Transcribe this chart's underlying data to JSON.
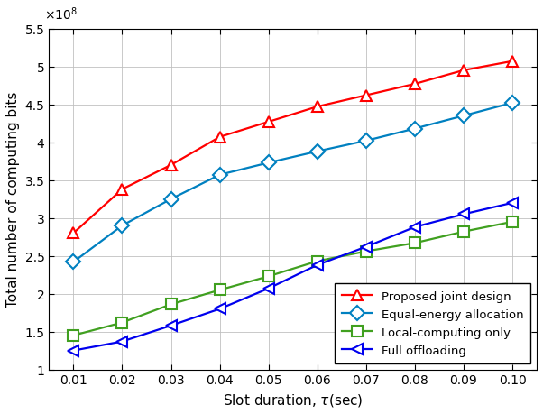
{
  "x": [
    0.01,
    0.02,
    0.03,
    0.04,
    0.05,
    0.06,
    0.07,
    0.08,
    0.09,
    0.1
  ],
  "proposed": [
    280000000.0,
    338000000.0,
    370000000.0,
    407000000.0,
    427000000.0,
    447000000.0,
    462000000.0,
    477000000.0,
    495000000.0,
    507000000.0
  ],
  "equal_energy": [
    242000000.0,
    290000000.0,
    325000000.0,
    357000000.0,
    373000000.0,
    388000000.0,
    402000000.0,
    418000000.0,
    435000000.0,
    452000000.0
  ],
  "local_computing": [
    145000000.0,
    162000000.0,
    186000000.0,
    205000000.0,
    223000000.0,
    243000000.0,
    256000000.0,
    267000000.0,
    282000000.0,
    295000000.0
  ],
  "full_offloading": [
    125000000.0,
    137000000.0,
    158000000.0,
    180000000.0,
    207000000.0,
    238000000.0,
    262000000.0,
    288000000.0,
    305000000.0,
    320000000.0
  ],
  "proposed_color": "#FF0000",
  "equal_energy_color": "#0080C0",
  "local_computing_color": "#40A020",
  "full_offloading_color": "#0000EE",
  "xlabel": "Slot duration, $\\tau$(sec)",
  "ylabel": "Total number of computing bits",
  "ylim": [
    100000000.0,
    550000000.0
  ],
  "xlim": [
    0.005,
    0.105
  ],
  "xticks": [
    0.01,
    0.02,
    0.03,
    0.04,
    0.05,
    0.06,
    0.07,
    0.08,
    0.09,
    0.1
  ],
  "yticks": [
    100000000.0,
    150000000.0,
    200000000.0,
    250000000.0,
    300000000.0,
    350000000.0,
    400000000.0,
    450000000.0,
    500000000.0,
    550000000.0
  ],
  "legend_labels": [
    "Proposed joint design",
    "Equal-energy allocation",
    "Local-computing only",
    "Full offloading"
  ],
  "linewidth": 1.6,
  "markersize": 8
}
